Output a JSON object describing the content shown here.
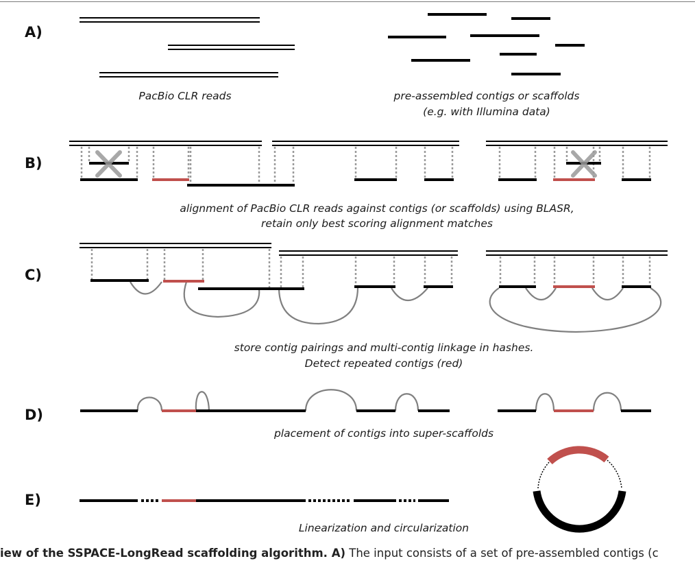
{
  "labels": {
    "a": "A)",
    "b": "B)",
    "c": "C)",
    "d": "D)",
    "e": "E)"
  },
  "captions": {
    "reads": "PacBio CLR reads",
    "contigs_1": "pre-assembled contigs or scaffolds",
    "contigs_2": "(e.g. with Illumina data)",
    "align_1": "alignment of PacBio CLR reads against contigs (or scaffolds) using BLASR,",
    "align_2": "retain only best scoring alignment matches",
    "store_1": "store contig pairings and multi-contig linkage in hashes.",
    "store_2": "Detect repeated contigs (red)",
    "placement": "placement of contigs into super-scaffolds",
    "linear": "Linearization and circularization"
  },
  "figure_caption": {
    "bold": "iew of the SSPACE-LongRead scaffolding algorithm. A)",
    "text": " The input consists of a set of pre-assembled contigs (c"
  },
  "colors": {
    "contig": "#000000",
    "repeat": "#c0504d",
    "link": "#7f7f7f",
    "reject_mark": "#9a9a9a"
  }
}
